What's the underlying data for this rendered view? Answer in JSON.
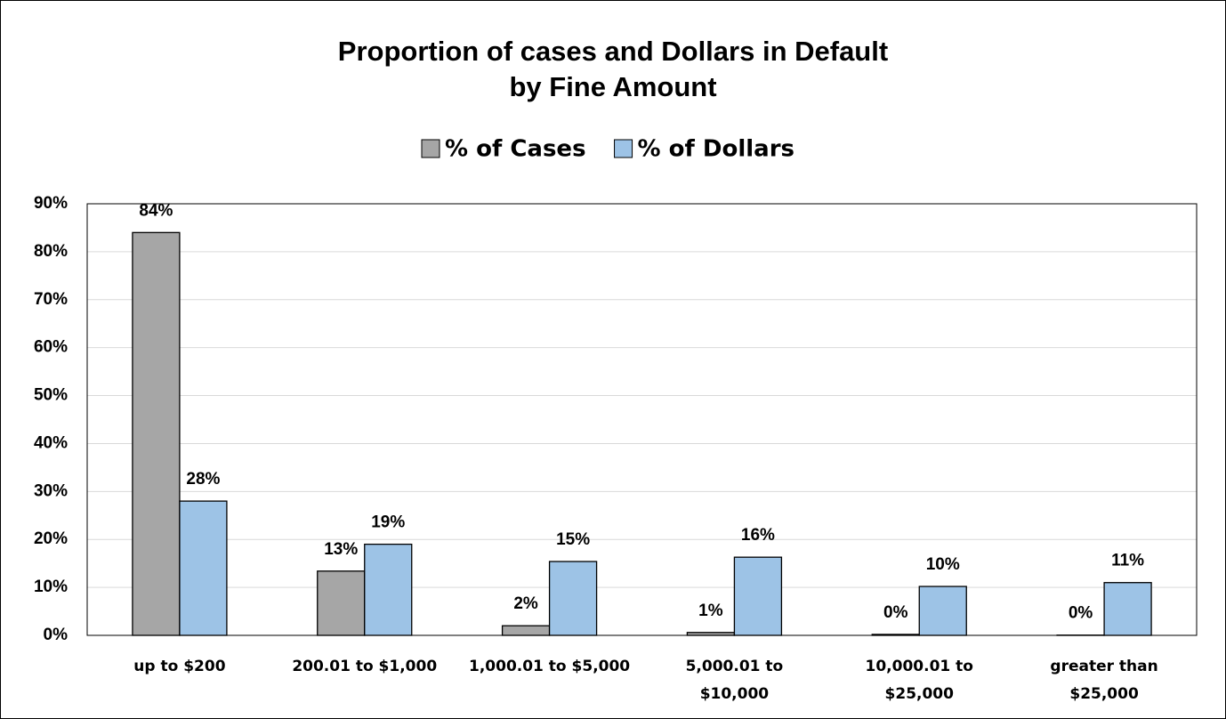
{
  "chart_data": {
    "type": "bar",
    "title": [
      "Proportion of cases and Dollars in Default",
      "by Fine Amount"
    ],
    "categories": [
      "up to $200",
      "200.01 to $1,000",
      "1,000.01 to $5,000",
      "5,000.01 to $10,000",
      "10,000.01 to $25,000",
      "greater than $25,000"
    ],
    "series": [
      {
        "name": "% of Cases",
        "color": "#a6a6a6",
        "values": [
          84,
          13.4,
          2,
          0.6,
          0.2,
          0.05
        ],
        "value_labels": [
          "84%",
          "13%",
          "2%",
          "1%",
          "0%",
          "0%"
        ]
      },
      {
        "name": "% of Dollars",
        "color": "#9dc3e6",
        "values": [
          28,
          19,
          15.4,
          16.3,
          10.2,
          11
        ],
        "value_labels": [
          "28%",
          "19%",
          "15%",
          "16%",
          "10%",
          "11%"
        ]
      }
    ],
    "ylim": [
      0,
      90
    ],
    "yticks": [
      {
        "value": 0,
        "label": "0%"
      },
      {
        "value": 10,
        "label": "10%"
      },
      {
        "value": 20,
        "label": "20%"
      },
      {
        "value": 30,
        "label": "30%"
      },
      {
        "value": 40,
        "label": "40%"
      },
      {
        "value": 50,
        "label": "50%"
      },
      {
        "value": 60,
        "label": "60%"
      },
      {
        "value": 70,
        "label": "70%"
      },
      {
        "value": 80,
        "label": "80%"
      },
      {
        "value": 90,
        "label": "90%"
      }
    ],
    "grid": true,
    "legend": "top"
  }
}
